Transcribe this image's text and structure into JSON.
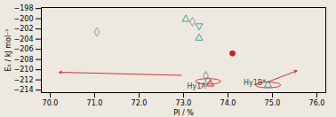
{
  "chart_data": {
    "type": "scatter",
    "xlabel": "PI / %",
    "ylabel": "Eₑ / kJ mol⁻¹",
    "xlim": [
      69.8,
      76.2
    ],
    "ylim": [
      -214.5,
      -197.8
    ],
    "xticks": [
      70,
      71,
      72,
      73,
      74,
      75,
      76
    ],
    "yticks": [
      -198,
      -200,
      -202,
      -204,
      -206,
      -208,
      -210,
      -212,
      -214
    ],
    "series": [
      {
        "marker": "diamond",
        "color": "#999999",
        "x": [
          71.05,
          73.2
        ],
        "values": [
          -202.6,
          -200.6
        ]
      },
      {
        "marker": "triangle",
        "color": "#3AA0A0",
        "x": [
          73.05,
          73.35,
          74.9
        ],
        "values": [
          -200.1,
          -203.8,
          -213.0
        ]
      },
      {
        "marker": "triangle-down",
        "color": "#3AA0A0",
        "x": [
          73.35
        ],
        "values": [
          -201.4
        ]
      },
      {
        "marker": "diamond",
        "color": "#888888",
        "x": [
          73.5
        ],
        "values": [
          -211.2
        ]
      },
      {
        "marker": "circle",
        "color": "#888888",
        "x": [
          73.55
        ],
        "values": [
          -212.1
        ]
      },
      {
        "marker": "triangle",
        "color": "#CC3333",
        "x": [
          73.6
        ],
        "values": [
          -212.8
        ]
      },
      {
        "marker": "circle-filled",
        "color": "#CC2222",
        "x": [
          74.1
        ],
        "values": [
          -206.8
        ]
      }
    ],
    "ellipses": [
      {
        "x": 73.55,
        "y": -212.3,
        "rx": 0.28,
        "ry": 0.55,
        "color": "#CC3333"
      },
      {
        "x": 74.9,
        "y": -213.0,
        "rx": 0.28,
        "ry": 0.55,
        "color": "#CC3333"
      }
    ],
    "arrows": [
      {
        "x1": 72.95,
        "y1": -211.1,
        "x2": 70.2,
        "y2": -210.5,
        "color": "#CC3333"
      },
      {
        "x1": 74.9,
        "y1": -212.4,
        "x2": 75.55,
        "y2": -210.2,
        "color": "#CC3333"
      }
    ],
    "annotations": [
      {
        "x": 73.08,
        "y": -213.2,
        "text": "Hy1A"
      },
      {
        "x": 74.35,
        "y": -212.5,
        "text": "Hy1B*"
      }
    ]
  }
}
